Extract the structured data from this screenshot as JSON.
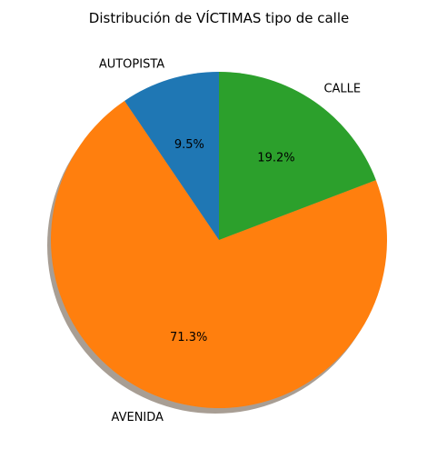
{
  "chart_data": {
    "type": "pie",
    "title": "Distribución de VÍCTIMAS tipo de calle",
    "categories": [
      "AUTOPISTA",
      "AVENIDA",
      "CALLE"
    ],
    "values": [
      9.5,
      71.3,
      19.2
    ],
    "percent_labels": [
      "9.5%",
      "71.3%",
      "19.2%"
    ],
    "colors": [
      "#1f77b4",
      "#ff7f0e",
      "#2ca02c"
    ],
    "shadow": true,
    "start_angle_deg": 90,
    "direction": "counterclockwise"
  }
}
